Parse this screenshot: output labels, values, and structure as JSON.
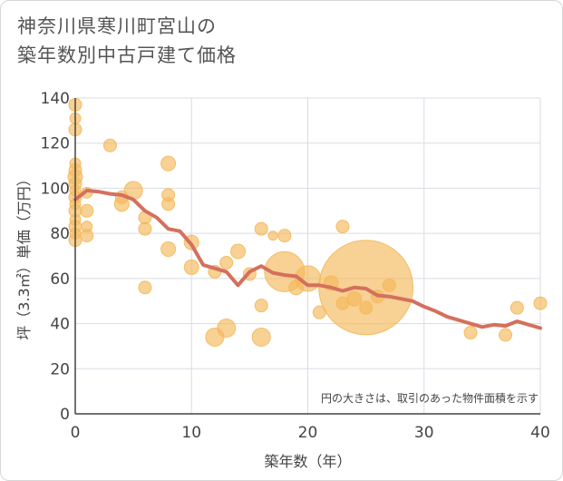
{
  "title_lines": [
    "神奈川県寒川町宮山の",
    "築年数別中古戸建て価格"
  ],
  "chart_data": {
    "type": "scatter",
    "title": "神奈川県寒川町宮山の築年数別中古戸建て価格",
    "xlabel": "築年数（年）",
    "ylabel": "坪（3.3㎡）単価（万円）",
    "xlim": [
      0,
      40
    ],
    "ylim": [
      0,
      140
    ],
    "xticks": [
      0,
      10,
      20,
      30,
      40
    ],
    "yticks": [
      0,
      20,
      40,
      60,
      80,
      100,
      120,
      140
    ],
    "grid": true,
    "note": "円の大きさは、取引のあった物件面積を示す",
    "colors": {
      "bubble": "#f5b85a",
      "line": "#d4705e",
      "grid": "#d8dde3",
      "axis": "#444444"
    },
    "points": [
      {
        "x": 0,
        "y": 137,
        "size": 7
      },
      {
        "x": 0,
        "y": 131,
        "size": 6
      },
      {
        "x": 0,
        "y": 126,
        "size": 7
      },
      {
        "x": 0,
        "y": 111,
        "size": 6
      },
      {
        "x": 0,
        "y": 108,
        "size": 7
      },
      {
        "x": 0,
        "y": 105,
        "size": 8
      },
      {
        "x": 0,
        "y": 102,
        "size": 7
      },
      {
        "x": 0,
        "y": 99,
        "size": 6
      },
      {
        "x": 0,
        "y": 96,
        "size": 7
      },
      {
        "x": 0,
        "y": 93,
        "size": 6
      },
      {
        "x": 0,
        "y": 90,
        "size": 7
      },
      {
        "x": 0,
        "y": 86,
        "size": 6
      },
      {
        "x": 0,
        "y": 83,
        "size": 7
      },
      {
        "x": 0,
        "y": 80,
        "size": 6
      },
      {
        "x": 0,
        "y": 77,
        "size": 7
      },
      {
        "x": 1,
        "y": 98,
        "size": 6
      },
      {
        "x": 1,
        "y": 90,
        "size": 7
      },
      {
        "x": 1,
        "y": 83,
        "size": 6
      },
      {
        "x": 1,
        "y": 79,
        "size": 7
      },
      {
        "x": 3,
        "y": 119,
        "size": 7
      },
      {
        "x": 4,
        "y": 96,
        "size": 7
      },
      {
        "x": 4,
        "y": 93,
        "size": 8
      },
      {
        "x": 5,
        "y": 99,
        "size": 10
      },
      {
        "x": 6,
        "y": 87,
        "size": 7
      },
      {
        "x": 6,
        "y": 82,
        "size": 7
      },
      {
        "x": 6,
        "y": 56,
        "size": 7
      },
      {
        "x": 8,
        "y": 111,
        "size": 8
      },
      {
        "x": 8,
        "y": 97,
        "size": 7
      },
      {
        "x": 8,
        "y": 93,
        "size": 7
      },
      {
        "x": 8,
        "y": 73,
        "size": 8
      },
      {
        "x": 10,
        "y": 76,
        "size": 8
      },
      {
        "x": 10,
        "y": 65,
        "size": 8
      },
      {
        "x": 12,
        "y": 63,
        "size": 7
      },
      {
        "x": 12,
        "y": 34,
        "size": 10
      },
      {
        "x": 13,
        "y": 67,
        "size": 7
      },
      {
        "x": 13,
        "y": 38,
        "size": 10
      },
      {
        "x": 14,
        "y": 72,
        "size": 8
      },
      {
        "x": 15,
        "y": 62,
        "size": 7
      },
      {
        "x": 16,
        "y": 82,
        "size": 7
      },
      {
        "x": 16,
        "y": 48,
        "size": 7
      },
      {
        "x": 16,
        "y": 34,
        "size": 10
      },
      {
        "x": 17,
        "y": 79,
        "size": 5
      },
      {
        "x": 18,
        "y": 79,
        "size": 7
      },
      {
        "x": 18,
        "y": 63,
        "size": 22
      },
      {
        "x": 19,
        "y": 56,
        "size": 8
      },
      {
        "x": 20,
        "y": 60,
        "size": 14
      },
      {
        "x": 21,
        "y": 45,
        "size": 7
      },
      {
        "x": 22,
        "y": 58,
        "size": 8
      },
      {
        "x": 23,
        "y": 83,
        "size": 7
      },
      {
        "x": 23,
        "y": 49,
        "size": 7
      },
      {
        "x": 24,
        "y": 51,
        "size": 8
      },
      {
        "x": 25,
        "y": 56,
        "size": 52
      },
      {
        "x": 25,
        "y": 47,
        "size": 7
      },
      {
        "x": 26,
        "y": 52,
        "size": 7
      },
      {
        "x": 27,
        "y": 57,
        "size": 7
      },
      {
        "x": 34,
        "y": 36,
        "size": 7
      },
      {
        "x": 37,
        "y": 35,
        "size": 7
      },
      {
        "x": 38,
        "y": 47,
        "size": 7
      },
      {
        "x": 40,
        "y": 49,
        "size": 7
      }
    ],
    "trend": {
      "x": [
        0,
        1,
        2,
        3,
        4,
        5,
        6,
        7,
        8,
        9,
        10,
        11,
        12,
        13,
        14,
        15,
        16,
        17,
        18,
        19,
        20,
        21,
        22,
        23,
        24,
        25,
        26,
        27,
        28,
        29,
        30,
        31,
        32,
        33,
        34,
        35,
        36,
        37,
        38,
        39,
        40
      ],
      "y": [
        95,
        99,
        98.5,
        97.5,
        97,
        95,
        90,
        87,
        82,
        81,
        75,
        66,
        64.5,
        63,
        57,
        63,
        65.5,
        62.5,
        61.5,
        61,
        57,
        57,
        56,
        54.5,
        56,
        55.5,
        52.5,
        52,
        51,
        50,
        47.5,
        45.5,
        43,
        41.5,
        40,
        38.5,
        39.5,
        39,
        41,
        39.5,
        38
      ]
    }
  }
}
